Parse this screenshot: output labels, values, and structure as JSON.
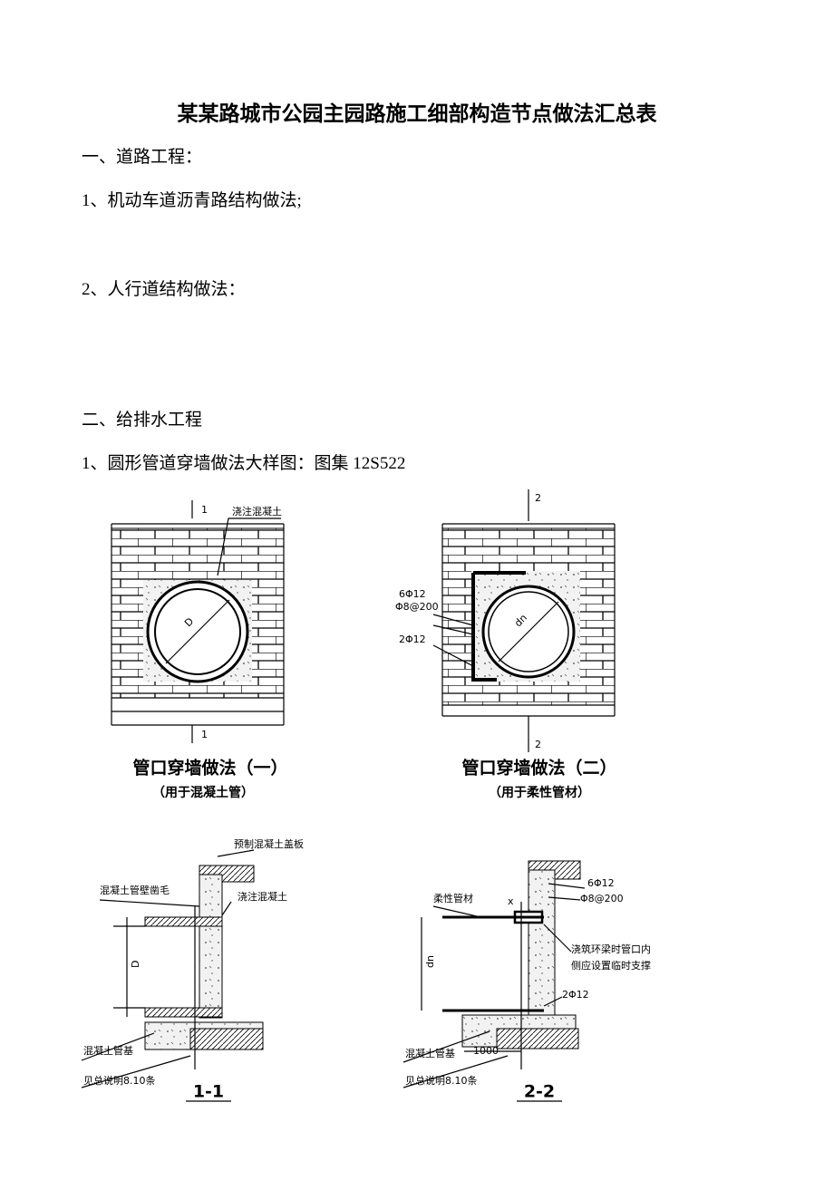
{
  "header": {
    "title": "某某路城市公园主园路施工细部构造节点做法汇总表"
  },
  "sections": [
    {
      "heading": "一、道路工程：",
      "items": [
        "1、机动车道沥青路结构做法;",
        "2、人行道结构做法："
      ]
    },
    {
      "heading": "二、给排水工程",
      "items": [
        "1、圆形管道穿墙做法大样图：图集 12S522"
      ]
    }
  ],
  "figures": [
    {
      "labels": [
        "1",
        "浇注混凝土",
        "D",
        "1"
      ],
      "caption": "管口穿墙做法（一）",
      "subcaption": "（用于混凝土管）"
    },
    {
      "labels": [
        "2",
        "6Φ12",
        "Φ8@200",
        "2Φ12",
        "dn",
        "2"
      ],
      "caption": "管口穿墙做法（二）",
      "subcaption": "（用于柔性管材）"
    },
    {
      "labels": [
        "预制混凝土盖板",
        "混凝土管壁凿毛",
        "浇注混凝土",
        "D",
        "混凝土管基",
        "见总说明8.10条"
      ],
      "caption": "1-1"
    },
    {
      "labels": [
        "6Φ12",
        "Φ8@200",
        "柔性管材",
        "x",
        "浇筑环梁时管口内",
        "侧应设置临时支撑",
        "dn",
        "2Φ12",
        "混凝土管基",
        "1000",
        "见总说明8.10条"
      ],
      "caption": "2-2"
    }
  ]
}
